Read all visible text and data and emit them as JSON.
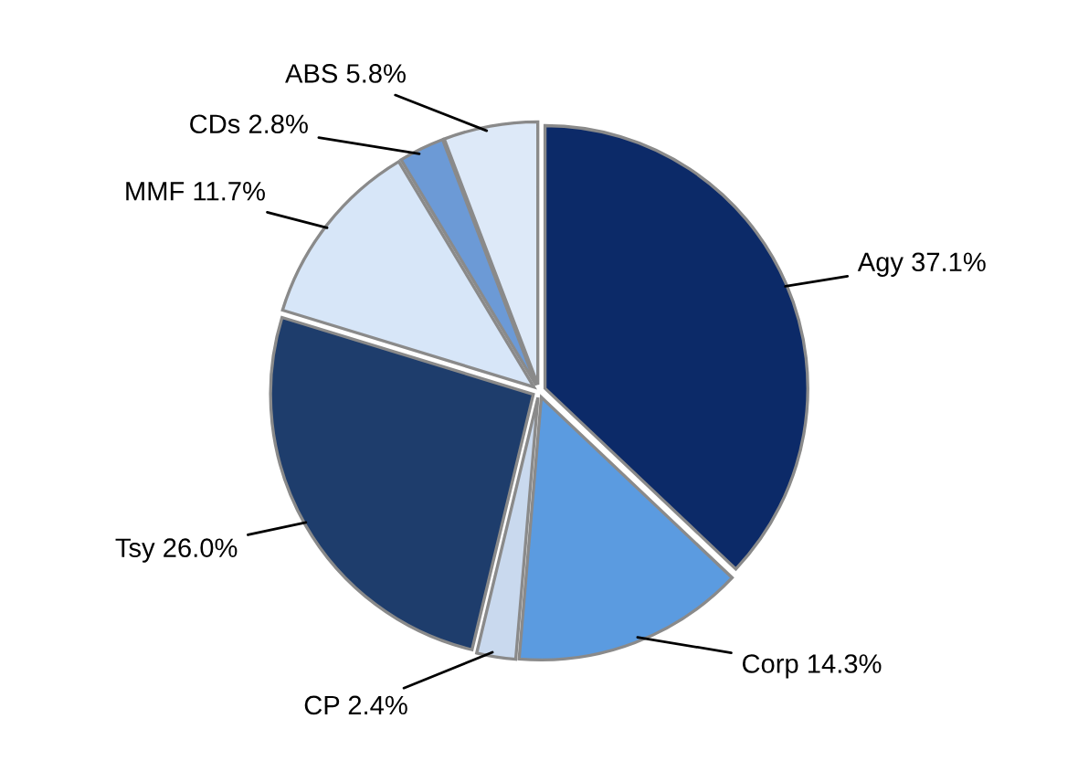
{
  "chart_data": {
    "type": "pie",
    "categories": [
      "Agy",
      "Corp",
      "CP",
      "Tsy",
      "MMF",
      "CDs",
      "ABS"
    ],
    "values": [
      37.1,
      14.3,
      2.4,
      26.0,
      11.7,
      2.8,
      5.8
    ],
    "value_labels": [
      "37.1%",
      "14.3%",
      "2.4%",
      "26.0%",
      "11.7%",
      "2.8%",
      "5.8%"
    ],
    "colors": [
      "#0c2a68",
      "#5b9be0",
      "#c9d9ee",
      "#1e3d6c",
      "#d7e6f8",
      "#6c9ad6",
      "#dde9f8"
    ],
    "legend": false
  }
}
